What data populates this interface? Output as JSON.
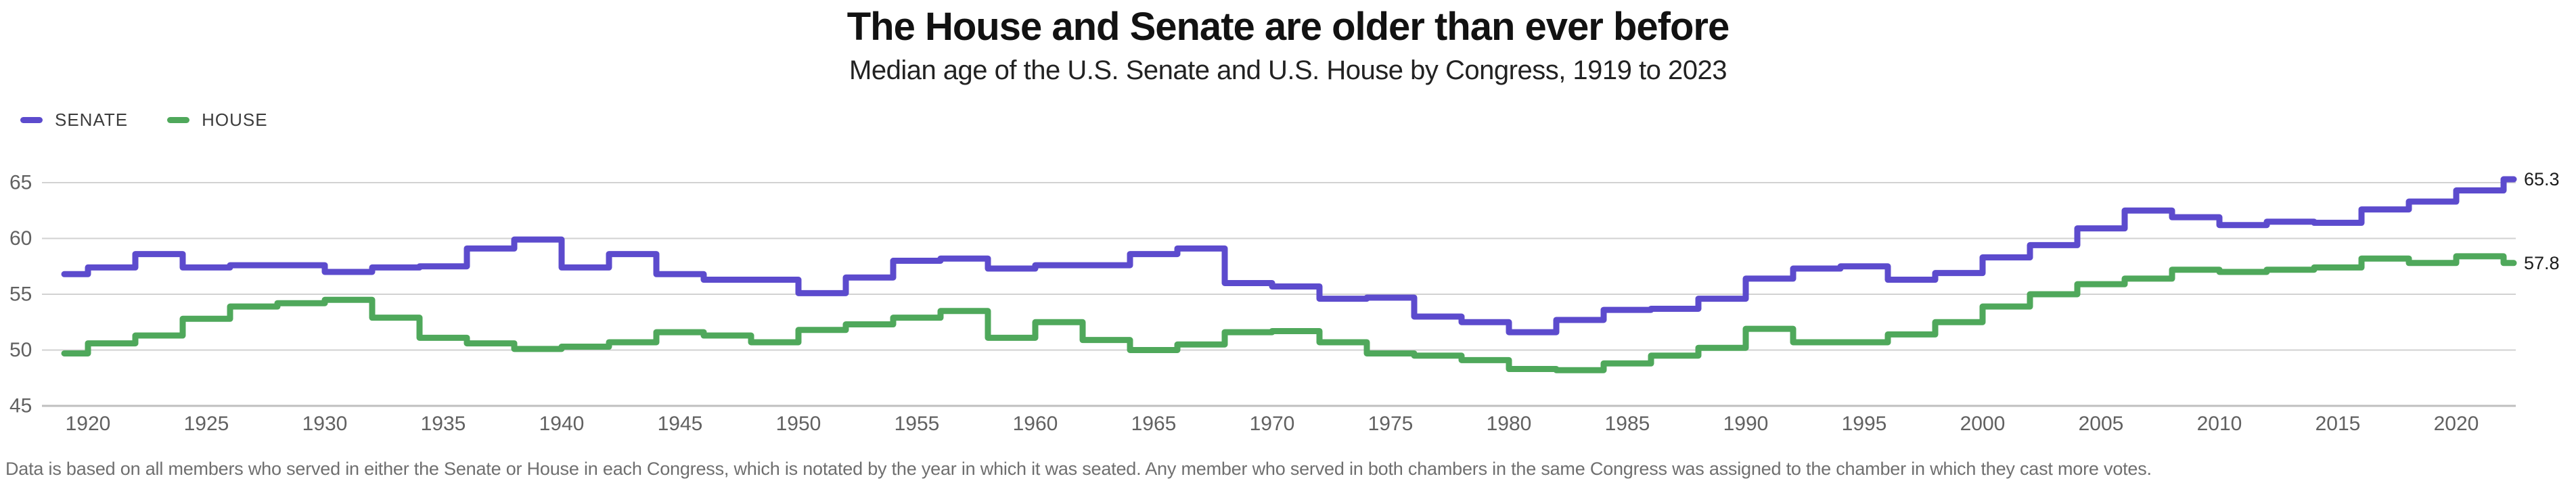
{
  "header": {
    "title": "The House and Senate are older than ever before",
    "subtitle": "Median age of the U.S. Senate and U.S. House by Congress, 1919 to 2023"
  },
  "legend": {
    "items": [
      {
        "label": "SENATE",
        "color": "#5c4bcd"
      },
      {
        "label": "HOUSE",
        "color": "#4fa85b"
      }
    ]
  },
  "chart_data": {
    "type": "line",
    "subtype": "step",
    "title": "The House and Senate are older than ever before",
    "subtitle": "Median age of the U.S. Senate and U.S. House by Congress, 1919 to 2023",
    "xlabel": "",
    "ylabel": "",
    "grid": true,
    "legend_position": "top-left",
    "ylim": [
      45,
      67
    ],
    "xlim": [
      1919,
      2023.5
    ],
    "y_ticks": [
      45,
      50,
      55,
      60,
      65
    ],
    "x_label_years": [
      1920,
      1925,
      1930,
      1935,
      1940,
      1945,
      1950,
      1955,
      1960,
      1965,
      1970,
      1975,
      1980,
      1985,
      1990,
      1995,
      2000,
      2005,
      2010,
      2015,
      2020
    ],
    "congress_years": [
      1919,
      1921,
      1923,
      1925,
      1927,
      1929,
      1931,
      1933,
      1935,
      1937,
      1939,
      1941,
      1943,
      1945,
      1947,
      1949,
      1951,
      1953,
      1955,
      1957,
      1959,
      1961,
      1963,
      1965,
      1967,
      1969,
      1971,
      1973,
      1975,
      1977,
      1979,
      1981,
      1983,
      1985,
      1987,
      1989,
      1991,
      1993,
      1995,
      1997,
      1999,
      2001,
      2003,
      2005,
      2007,
      2009,
      2011,
      2013,
      2015,
      2017,
      2019,
      2021,
      2023
    ],
    "series": [
      {
        "name": "SENATE",
        "color": "#5c4bcd",
        "end_label": "65.3",
        "values": [
          56.8,
          57.4,
          58.6,
          57.4,
          57.6,
          57.6,
          57.0,
          57.4,
          57.5,
          59.1,
          59.9,
          57.4,
          58.6,
          56.8,
          56.3,
          56.3,
          55.1,
          56.5,
          58.0,
          58.2,
          57.3,
          57.6,
          57.6,
          58.6,
          59.1,
          56.0,
          55.7,
          54.6,
          54.7,
          53.0,
          52.5,
          51.6,
          52.7,
          53.6,
          53.7,
          54.6,
          56.4,
          57.3,
          57.5,
          56.3,
          56.9,
          58.3,
          59.4,
          60.9,
          62.5,
          61.9,
          61.2,
          61.5,
          61.4,
          62.6,
          63.3,
          64.3,
          65.3
        ]
      },
      {
        "name": "HOUSE",
        "color": "#4fa85b",
        "end_label": "57.8",
        "values": [
          49.7,
          50.6,
          51.3,
          52.8,
          53.9,
          54.2,
          54.5,
          52.9,
          51.1,
          50.6,
          50.1,
          50.3,
          50.7,
          51.6,
          51.3,
          50.7,
          51.8,
          52.3,
          52.9,
          53.5,
          51.1,
          52.5,
          50.9,
          50.0,
          50.5,
          51.6,
          51.7,
          50.7,
          49.7,
          49.5,
          49.1,
          48.3,
          48.2,
          48.8,
          49.5,
          50.2,
          51.9,
          50.7,
          50.7,
          51.4,
          52.5,
          53.9,
          55.0,
          55.9,
          56.4,
          57.2,
          57.0,
          57.2,
          57.4,
          58.2,
          57.8,
          58.4,
          57.8
        ]
      }
    ]
  },
  "footnote": "Data is based on all members who served in either the Senate or House in each Congress, which is notated by the year in which it was seated. Any member who served in both chambers in the same Congress was assigned to the chamber in which they cast more votes."
}
